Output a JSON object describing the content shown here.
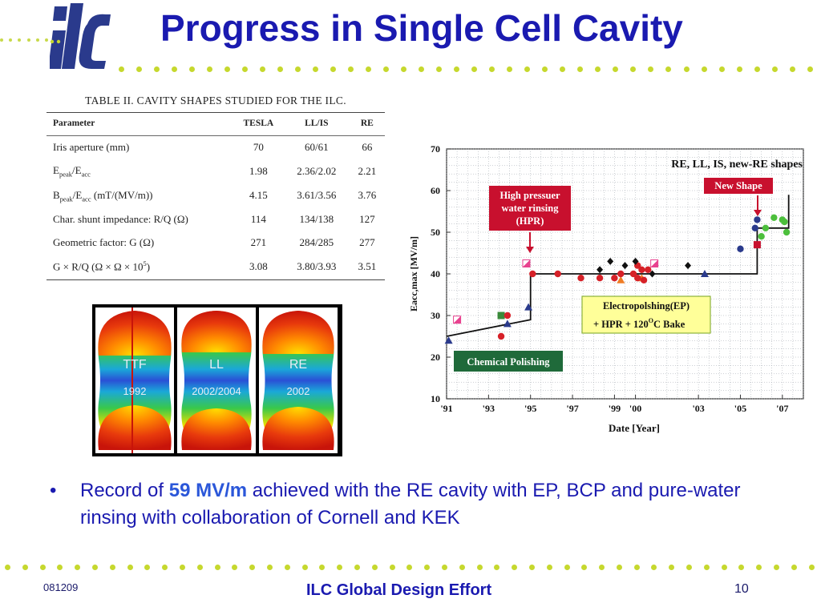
{
  "title": "Progress in Single Cell Cavity",
  "colors": {
    "title": "#1a1ab0",
    "accent_dots": "#c6d82e",
    "highlight": "#2b57d9"
  },
  "logo": {
    "icon": "ilc-logo-icon",
    "text": "ilc"
  },
  "table": {
    "caption": "TABLE II. CAVITY SHAPES STUDIED FOR THE ILC.",
    "headers": [
      "Parameter",
      "TESLA",
      "LL/IS",
      "RE"
    ],
    "rows": [
      {
        "tesla": "70",
        "llis": "60/61",
        "re": "66"
      },
      {
        "tesla": "1.98",
        "llis": "2.36/2.02",
        "re": "2.21"
      },
      {
        "tesla": "4.15",
        "llis": "3.61/3.56",
        "re": "3.76"
      },
      {
        "tesla": "114",
        "llis": "134/138",
        "re": "127"
      },
      {
        "tesla": "271",
        "llis": "284/285",
        "re": "277"
      },
      {
        "tesla": "3.08",
        "llis": "3.80/3.93",
        "re": "3.51"
      }
    ],
    "row_labels": {
      "iris": "Iris aperture (mm)",
      "epeak_a": "E",
      "epeak_b": "peak",
      "epeak_c": "/E",
      "epeak_d": "acc",
      "bpeak_a": "B",
      "bpeak_b": "peak",
      "bpeak_c": "/E",
      "bpeak_d": "acc",
      "bpeak_e": " (mT/(MV/m))",
      "shunt": "Char. shunt impedance: R/Q (Ω)",
      "geom": "Geometric factor: G (Ω)",
      "grq": "G × R/Q  (Ω × Ω × 10",
      "grq_sup": "5",
      "grq_end": ")"
    }
  },
  "cavities": [
    {
      "name": "TTF",
      "year": "1992"
    },
    {
      "name": "LL",
      "year": "2002/2004"
    },
    {
      "name": "RE",
      "year": "2002"
    }
  ],
  "chart_data": {
    "type": "scatter",
    "title": "RE, LL, IS, new-RE shapes",
    "xlabel": "Date  [Year]",
    "ylabel": "Eacc,max [MV/m]",
    "xlim": [
      1991,
      2008
    ],
    "ylim": [
      10,
      70
    ],
    "x_ticks": [
      1991,
      1993,
      1995,
      1997,
      1999,
      2000,
      2003,
      2005,
      2007
    ],
    "x_tick_labels": [
      "'91",
      "'93",
      "'95",
      "'97",
      "'99",
      "'00",
      "'03",
      "'05",
      "'07"
    ],
    "y_ticks": [
      10,
      20,
      30,
      40,
      50,
      60,
      70
    ],
    "grid": true,
    "annotations": {
      "hpr": [
        "High pressuer",
        "water rinsing",
        "(HPR)"
      ],
      "ep": [
        "Electropolshing(EP)",
        "+ HPR + 120",
        "O",
        "C Bake"
      ],
      "new_shape": "New Shape",
      "chemical": "Chemical Polishing"
    },
    "envelope": [
      [
        1991,
        25
      ],
      [
        1995,
        29
      ],
      [
        1995,
        40
      ],
      [
        2005.8,
        40
      ],
      [
        2005.8,
        51
      ],
      [
        2007.3,
        51
      ],
      [
        2007.3,
        59
      ]
    ],
    "series": [
      {
        "marker": "triangle",
        "color": "#2a3a8c",
        "points": [
          [
            1991.1,
            24
          ],
          [
            1993.9,
            28
          ],
          [
            1994.9,
            32
          ],
          [
            2003.3,
            40
          ]
        ]
      },
      {
        "marker": "triangle",
        "color": "#ef7d25",
        "points": [
          [
            1999.3,
            38.5
          ],
          [
            2000.3,
            39
          ]
        ]
      },
      {
        "marker": "square",
        "color": "#e8428f",
        "points": [
          [
            1991.5,
            29
          ],
          [
            1994.8,
            42.5
          ],
          [
            2000.9,
            42.5
          ]
        ]
      },
      {
        "marker": "square",
        "color": "#3a8a3a",
        "points": [
          [
            1993.6,
            30
          ]
        ]
      },
      {
        "marker": "square",
        "color": "#c8102e",
        "points": [
          [
            2005.8,
            47
          ]
        ]
      },
      {
        "marker": "circle",
        "color": "#d62128",
        "points": [
          [
            1993.9,
            30
          ],
          [
            1993.6,
            25
          ],
          [
            1995.1,
            40
          ],
          [
            1996.3,
            40
          ],
          [
            1997.4,
            39
          ],
          [
            1998.3,
            39
          ],
          [
            1999.0,
            39
          ],
          [
            1999.3,
            40
          ],
          [
            1999.9,
            40
          ],
          [
            2000.1,
            42
          ],
          [
            2000.3,
            41
          ],
          [
            2000.6,
            41
          ],
          [
            2000.1,
            39
          ],
          [
            2000.4,
            38.5
          ]
        ]
      },
      {
        "marker": "diamond",
        "color": "#111111",
        "points": [
          [
            1998.3,
            41
          ],
          [
            1998.8,
            43
          ],
          [
            1999.5,
            42
          ],
          [
            2000.0,
            43
          ],
          [
            2000.8,
            40
          ],
          [
            2002.5,
            42
          ]
        ]
      },
      {
        "marker": "circle",
        "color": "#2a3a8c",
        "points": [
          [
            2005.0,
            46
          ],
          [
            2005.7,
            51
          ],
          [
            2005.8,
            53
          ]
        ]
      },
      {
        "marker": "circle",
        "color": "#4cbf3c",
        "points": [
          [
            2006.0,
            49
          ],
          [
            2006.2,
            51
          ],
          [
            2006.6,
            53.5
          ],
          [
            2007.0,
            53
          ],
          [
            2007.1,
            52.5
          ],
          [
            2007.2,
            50
          ]
        ]
      }
    ]
  },
  "bullet": {
    "symbol": "•",
    "pre": "Record of ",
    "highlight": "59 MV/m",
    "post": " achieved with the RE cavity with EP, BCP and pure-water rinsing with collaboration of Cornell and KEK"
  },
  "footer": {
    "date": "081209",
    "center": "ILC Global Design Effort",
    "page": "10"
  }
}
